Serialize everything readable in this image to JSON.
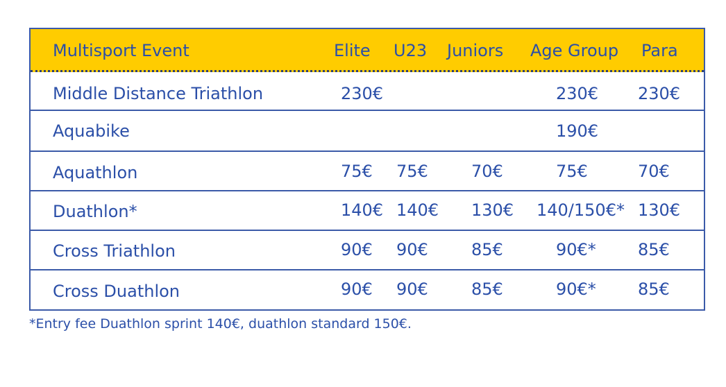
{
  "table": {
    "headers": [
      "Multisport Event",
      "Elite",
      "U23",
      "Juniors",
      "Age Group",
      "Para"
    ],
    "rows": [
      {
        "event": "Middle Distance Triathlon",
        "elite": "230€",
        "u23": "",
        "juniors": "",
        "age_group": "230€",
        "para": "230€"
      },
      {
        "event": "Aquabike",
        "elite": "",
        "u23": "",
        "juniors": "",
        "age_group": "190€",
        "para": ""
      },
      {
        "event": "Aquathlon",
        "elite": "75€",
        "u23": "75€",
        "juniors": "70€",
        "age_group": "75€",
        "para": "70€"
      },
      {
        "event": "Duathlon*",
        "elite": "140€",
        "u23": "140€",
        "juniors": "130€",
        "age_group": "140/150€*",
        "para": "130€"
      },
      {
        "event": "Cross Triathlon",
        "elite": "90€",
        "u23": "90€",
        "juniors": "85€",
        "age_group": "90€*",
        "para": "85€"
      },
      {
        "event": "Cross Duathlon",
        "elite": "90€",
        "u23": "90€",
        "juniors": "85€",
        "age_group": "90€*",
        "para": "85€"
      }
    ]
  },
  "footnote": "*Entry fee Duathlon sprint 140€, duathlon standard 150€.",
  "colors": {
    "header_background": "#ffcc00",
    "text": "#2b4fa8",
    "border": "#3b5aa8"
  }
}
